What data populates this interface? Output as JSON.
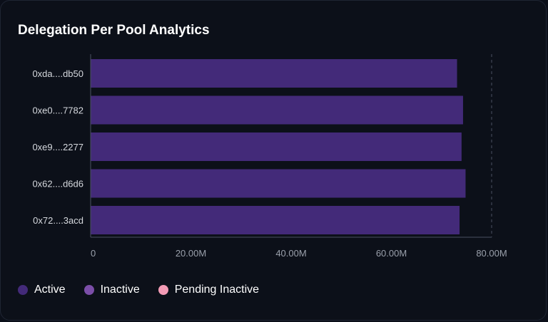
{
  "card": {
    "title": "Delegation Per Pool Analytics"
  },
  "colors": {
    "background": "#0c1019",
    "bar": "#432a79",
    "axis": "#4a5061",
    "tick_text": "#9aa0ab",
    "category_text": "#d6d9de"
  },
  "legend": {
    "items": [
      {
        "label": "Active",
        "color": "#432a79"
      },
      {
        "label": "Inactive",
        "color": "#7b4ea8"
      },
      {
        "label": "Pending Inactive",
        "color": "#f39bb5"
      }
    ]
  },
  "chart_data": {
    "type": "bar",
    "orientation": "horizontal",
    "stacked": true,
    "categories": [
      "0xda....db50",
      "0xe0....7782",
      "0xe9....2277",
      "0x62....d6d6",
      "0x72....3acd"
    ],
    "series": [
      {
        "name": "Active",
        "values": [
          73100000,
          74300000,
          74000000,
          74800000,
          73600000
        ]
      },
      {
        "name": "Inactive",
        "values": [
          0,
          0,
          0,
          0,
          0
        ]
      },
      {
        "name": "Pending Inactive",
        "values": [
          0,
          0,
          0,
          0,
          0
        ]
      }
    ],
    "xlim": [
      0,
      80000000
    ],
    "x_ticks": [
      0,
      20000000,
      40000000,
      60000000,
      80000000
    ],
    "x_tick_labels": [
      "0",
      "20.00M",
      "40.00M",
      "60.00M",
      "80.00M"
    ],
    "xlabel": "",
    "ylabel": "",
    "legend_position": "bottom-left"
  }
}
